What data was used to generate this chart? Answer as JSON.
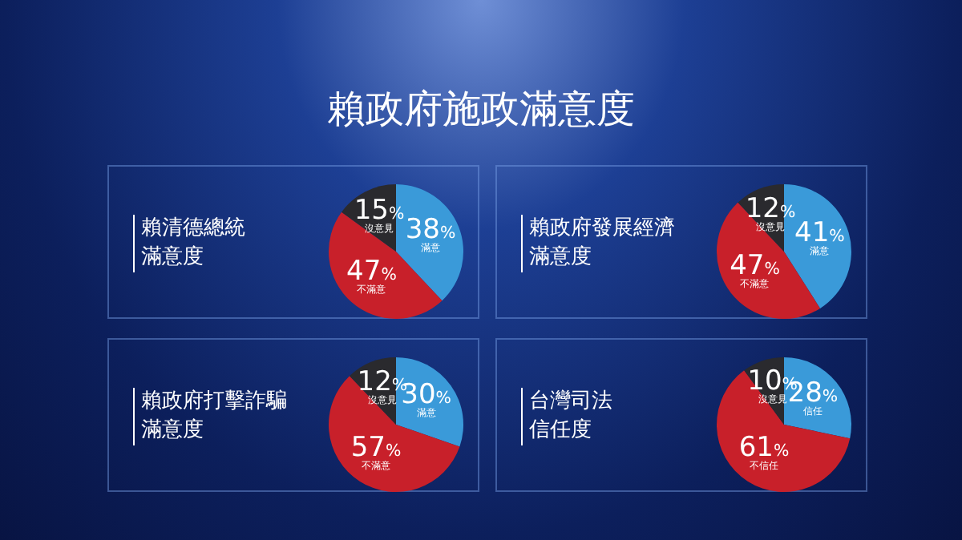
{
  "chart_data": [
    {
      "type": "other",
      "title": "賴政府施政滿意度"
    },
    {
      "type": "pie",
      "title": "賴清德總統滿意度",
      "categories": [
        "滿意",
        "不滿意",
        "沒意見"
      ],
      "values": [
        38,
        47,
        15
      ],
      "value_labels": [
        "38%",
        "47%",
        "15%"
      ],
      "colors": [
        "#3a9ad9",
        "#c8202a",
        "#2a2a2e"
      ]
    },
    {
      "type": "pie",
      "title": "賴政府發展經濟滿意度",
      "categories": [
        "滿意",
        "不滿意",
        "沒意見"
      ],
      "values": [
        41,
        47,
        12
      ],
      "value_labels": [
        "41%",
        "47%",
        "12%"
      ],
      "colors": [
        "#3a9ad9",
        "#c8202a",
        "#2a2a2e"
      ]
    },
    {
      "type": "pie",
      "title": "賴政府打擊詐騙滿意度",
      "categories": [
        "滿意",
        "不滿意",
        "沒意見"
      ],
      "values": [
        30,
        57,
        12
      ],
      "value_labels": [
        "30%",
        "57%",
        "12%"
      ],
      "colors": [
        "#3a9ad9",
        "#c8202a",
        "#2a2a2e"
      ]
    },
    {
      "type": "pie",
      "title": "台灣司法信任度",
      "categories": [
        "信任",
        "不信任",
        "沒意見"
      ],
      "values": [
        28,
        61,
        10
      ],
      "value_labels": [
        "28%",
        "61%",
        "10%"
      ],
      "colors": [
        "#3a9ad9",
        "#c8202a",
        "#2a2a2e"
      ]
    }
  ]
}
